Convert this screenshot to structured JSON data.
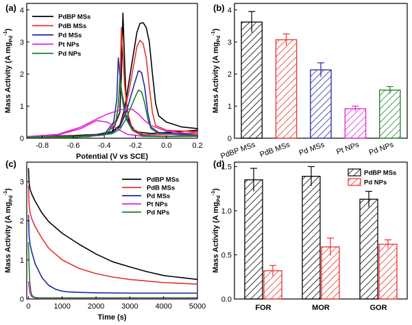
{
  "chart_data": [
    {
      "panel": "(a)",
      "type": "line",
      "xlabel": "Potential (V vs SCE)",
      "ylabel": "Mass Activity (A mg",
      "ylabel_sub": "Pd",
      "ylabel_sup": "-1",
      "ylabel_close": ")",
      "xlim": [
        -0.9,
        0.2
      ],
      "ylim": [
        0,
        4.2
      ],
      "xticks": [
        -0.8,
        -0.6,
        -0.4,
        -0.2,
        0.0,
        0.2
      ],
      "xtick_labels": [
        "-0.8",
        "-0.6",
        "-0.4",
        "-0.2",
        "0.0",
        "0.2"
      ],
      "yticks": [
        0,
        1,
        2,
        3,
        4
      ],
      "ytick_labels": [
        "0",
        "1",
        "2",
        "3",
        "4"
      ],
      "legend_position": "top-left",
      "series": [
        {
          "name": "PdBP MSs",
          "color": "#000000",
          "forward": [
            [
              -0.9,
              0.05
            ],
            [
              -0.6,
              0.08
            ],
            [
              -0.45,
              0.12
            ],
            [
              -0.35,
              0.2
            ],
            [
              -0.3,
              0.4
            ],
            [
              -0.27,
              0.9
            ],
            [
              -0.24,
              1.8
            ],
            [
              -0.21,
              2.7
            ],
            [
              -0.19,
              3.3
            ],
            [
              -0.17,
              3.58
            ],
            [
              -0.15,
              3.6
            ],
            [
              -0.13,
              3.45
            ],
            [
              -0.11,
              3.0
            ],
            [
              -0.09,
              2.0
            ],
            [
              -0.07,
              1.1
            ],
            [
              -0.05,
              0.7
            ],
            [
              0.0,
              0.5
            ],
            [
              0.1,
              0.35
            ],
            [
              0.2,
              0.3
            ]
          ],
          "reverse": [
            [
              0.2,
              0.25
            ],
            [
              0.0,
              0.18
            ],
            [
              -0.1,
              0.15
            ],
            [
              -0.2,
              0.2
            ],
            [
              -0.24,
              0.5
            ],
            [
              -0.26,
              1.2
            ],
            [
              -0.27,
              2.5
            ],
            [
              -0.28,
              3.9
            ],
            [
              -0.29,
              2.0
            ],
            [
              -0.3,
              0.8
            ],
            [
              -0.35,
              0.2
            ],
            [
              -0.5,
              0.05
            ],
            [
              -0.9,
              0.03
            ]
          ]
        },
        {
          "name": "PdB MSs",
          "color": "#e8302a",
          "forward": [
            [
              -0.9,
              0.04
            ],
            [
              -0.6,
              0.06
            ],
            [
              -0.45,
              0.1
            ],
            [
              -0.35,
              0.18
            ],
            [
              -0.3,
              0.35
            ],
            [
              -0.27,
              0.8
            ],
            [
              -0.24,
              1.5
            ],
            [
              -0.21,
              2.3
            ],
            [
              -0.19,
              2.85
            ],
            [
              -0.17,
              3.05
            ],
            [
              -0.15,
              2.95
            ],
            [
              -0.13,
              2.5
            ],
            [
              -0.11,
              1.6
            ],
            [
              -0.09,
              0.8
            ],
            [
              -0.07,
              0.4
            ],
            [
              0.0,
              0.25
            ],
            [
              0.2,
              0.2
            ]
          ],
          "reverse": [
            [
              0.2,
              0.18
            ],
            [
              0.0,
              0.12
            ],
            [
              -0.15,
              0.12
            ],
            [
              -0.22,
              0.3
            ],
            [
              -0.25,
              0.8
            ],
            [
              -0.27,
              1.7
            ],
            [
              -0.29,
              3.45
            ],
            [
              -0.3,
              1.6
            ],
            [
              -0.32,
              0.6
            ],
            [
              -0.38,
              0.15
            ],
            [
              -0.6,
              0.04
            ],
            [
              -0.9,
              0.02
            ]
          ]
        },
        {
          "name": "Pd MSs",
          "color": "#1f26a3",
          "forward": [
            [
              -0.9,
              0.03
            ],
            [
              -0.6,
              0.05
            ],
            [
              -0.45,
              0.1
            ],
            [
              -0.35,
              0.18
            ],
            [
              -0.3,
              0.35
            ],
            [
              -0.26,
              0.8
            ],
            [
              -0.23,
              1.3
            ],
            [
              -0.2,
              1.8
            ],
            [
              -0.18,
              2.1
            ],
            [
              -0.16,
              2.05
            ],
            [
              -0.14,
              1.6
            ],
            [
              -0.12,
              0.8
            ],
            [
              -0.1,
              0.35
            ],
            [
              -0.05,
              0.18
            ],
            [
              0.2,
              0.1
            ]
          ],
          "reverse": [
            [
              0.2,
              0.08
            ],
            [
              0.0,
              0.06
            ],
            [
              -0.15,
              0.08
            ],
            [
              -0.22,
              0.25
            ],
            [
              -0.26,
              0.7
            ],
            [
              -0.29,
              1.5
            ],
            [
              -0.31,
              2.5
            ],
            [
              -0.32,
              1.2
            ],
            [
              -0.34,
              0.5
            ],
            [
              -0.4,
              0.12
            ],
            [
              -0.6,
              0.03
            ],
            [
              -0.9,
              0.02
            ]
          ]
        },
        {
          "name": "Pt NPs",
          "color": "#e020d8",
          "forward": [
            [
              -0.9,
              0.05
            ],
            [
              -0.7,
              0.12
            ],
            [
              -0.55,
              0.35
            ],
            [
              -0.45,
              0.6
            ],
            [
              -0.38,
              0.75
            ],
            [
              -0.32,
              0.85
            ],
            [
              -0.26,
              0.92
            ],
            [
              -0.22,
              0.9
            ],
            [
              -0.18,
              0.75
            ],
            [
              -0.14,
              0.55
            ],
            [
              -0.1,
              0.4
            ],
            [
              0.0,
              0.22
            ],
            [
              0.2,
              0.12
            ]
          ],
          "reverse": [
            [
              0.2,
              0.1
            ],
            [
              0.0,
              0.06
            ],
            [
              -0.15,
              0.06
            ],
            [
              -0.25,
              0.12
            ],
            [
              -0.32,
              0.3
            ],
            [
              -0.38,
              0.5
            ],
            [
              -0.45,
              0.55
            ],
            [
              -0.55,
              0.3
            ],
            [
              -0.7,
              0.1
            ],
            [
              -0.9,
              0.04
            ]
          ]
        },
        {
          "name": "Pd NPs",
          "color": "#1e7d2a",
          "forward": [
            [
              -0.9,
              0.03
            ],
            [
              -0.6,
              0.05
            ],
            [
              -0.45,
              0.08
            ],
            [
              -0.35,
              0.14
            ],
            [
              -0.3,
              0.28
            ],
            [
              -0.26,
              0.6
            ],
            [
              -0.23,
              0.95
            ],
            [
              -0.2,
              1.3
            ],
            [
              -0.18,
              1.5
            ],
            [
              -0.16,
              1.45
            ],
            [
              -0.14,
              1.1
            ],
            [
              -0.12,
              0.6
            ],
            [
              -0.1,
              0.3
            ],
            [
              -0.05,
              0.15
            ],
            [
              0.2,
              0.08
            ]
          ],
          "reverse": [
            [
              0.2,
              0.06
            ],
            [
              0.0,
              0.05
            ],
            [
              -0.15,
              0.06
            ],
            [
              -0.22,
              0.25
            ],
            [
              -0.26,
              0.6
            ],
            [
              -0.28,
              1.1
            ],
            [
              -0.3,
              1.9
            ],
            [
              -0.31,
              1.0
            ],
            [
              -0.33,
              0.4
            ],
            [
              -0.4,
              0.1
            ],
            [
              -0.6,
              0.02
            ],
            [
              -0.9,
              0.02
            ]
          ]
        }
      ]
    },
    {
      "panel": "(b)",
      "type": "bar",
      "ylabel": "Mass Activity (A mg",
      "ylabel_sub": "Pd",
      "ylabel_sup": "-1",
      "ylabel_close": ")",
      "ylim": [
        0,
        4.2
      ],
      "yticks": [
        0,
        1,
        2,
        3,
        4
      ],
      "ytick_labels": [
        "0",
        "1",
        "2",
        "3",
        "4"
      ],
      "categories": [
        "PdBP MSs",
        "PdB MSs",
        "Pd MSs",
        "Pt NPs",
        "Pd NPs"
      ],
      "values": [
        3.62,
        3.07,
        2.13,
        0.92,
        1.5
      ],
      "errors": [
        0.33,
        0.18,
        0.22,
        0.08,
        0.11
      ],
      "colors": [
        "#000000",
        "#e8302a",
        "#1f26a3",
        "#e020d8",
        "#1e7d2a"
      ]
    },
    {
      "panel": "(c)",
      "type": "line",
      "xlabel": "Time (s)",
      "ylabel": "Mass Activity (A mg",
      "ylabel_sub": "Pd",
      "ylabel_sup": "-1",
      "ylabel_close": ")",
      "xlim": [
        -50,
        5000
      ],
      "ylim": [
        0,
        3.5
      ],
      "xticks": [
        0,
        1000,
        2000,
        3000,
        4000,
        5000
      ],
      "xtick_labels": [
        "0",
        "1000",
        "2000",
        "3000",
        "4000",
        "5000"
      ],
      "yticks": [
        0,
        1,
        2,
        3
      ],
      "ytick_labels": [
        "0",
        "1",
        "2",
        "3"
      ],
      "legend_position": "top-right",
      "series": [
        {
          "name": "PdBP MSs",
          "color": "#000000",
          "x": [
            0,
            20,
            50,
            100,
            200,
            400,
            600,
            1000,
            1500,
            2000,
            2500,
            3000,
            3500,
            4000,
            4500,
            5000
          ],
          "y": [
            3.35,
            2.95,
            2.8,
            2.68,
            2.5,
            2.2,
            1.98,
            1.68,
            1.4,
            1.15,
            0.95,
            0.82,
            0.7,
            0.6,
            0.55,
            0.5
          ]
        },
        {
          "name": "PdB MSs",
          "color": "#e8302a",
          "x": [
            0,
            20,
            50,
            100,
            200,
            400,
            600,
            1000,
            1500,
            2000,
            2500,
            3000,
            3500,
            4000,
            4500,
            5000
          ],
          "y": [
            2.9,
            2.4,
            2.2,
            2.05,
            1.85,
            1.55,
            1.3,
            1.0,
            0.78,
            0.65,
            0.56,
            0.5,
            0.46,
            0.42,
            0.4,
            0.38
          ]
        },
        {
          "name": "Pd MSs",
          "color": "#1f26a3",
          "x": [
            0,
            20,
            50,
            100,
            200,
            400,
            600,
            800,
            1000,
            1200,
            1500,
            2000,
            3000,
            4000,
            5000
          ],
          "y": [
            2.15,
            1.6,
            1.4,
            1.2,
            0.9,
            0.55,
            0.35,
            0.25,
            0.2,
            0.18,
            0.17,
            0.16,
            0.15,
            0.15,
            0.15
          ]
        },
        {
          "name": "Pt NPs",
          "color": "#e020d8",
          "x": [
            0,
            20,
            40,
            70,
            100,
            150,
            200,
            300,
            500,
            1000,
            2000,
            3000,
            4000,
            5000
          ],
          "y": [
            0.45,
            0.3,
            0.18,
            0.1,
            0.06,
            0.04,
            0.03,
            0.02,
            0.02,
            0.02,
            0.02,
            0.02,
            0.02,
            0.02
          ]
        },
        {
          "name": "Pd NPs",
          "color": "#1e7d2a",
          "x": [
            0,
            20,
            40,
            70,
            100,
            150,
            200,
            300,
            500,
            1000,
            2000,
            3000,
            4000,
            5000
          ],
          "y": [
            1.45,
            0.8,
            0.45,
            0.2,
            0.1,
            0.06,
            0.04,
            0.03,
            0.03,
            0.03,
            0.03,
            0.03,
            0.03,
            0.03
          ]
        }
      ]
    },
    {
      "panel": "(d)",
      "type": "bar",
      "ylabel": "Mass Activity (A mg",
      "ylabel_sub": "Pd",
      "ylabel_sup": "-1",
      "ylabel_close": ")",
      "ylim": [
        0,
        1.55
      ],
      "yticks": [
        0.0,
        0.5,
        1.0,
        1.5
      ],
      "ytick_labels": [
        "0.0",
        "0.5",
        "1.0",
        "1.5"
      ],
      "categories": [
        "FOR",
        "MOR",
        "GOR"
      ],
      "legend_position": "top-right",
      "series": [
        {
          "name": "PdBP MSs",
          "color": "#000000",
          "values": [
            1.35,
            1.39,
            1.13
          ],
          "errors": [
            0.13,
            0.11,
            0.09
          ]
        },
        {
          "name": "Pd NPs",
          "color": "#e8302a",
          "values": [
            0.32,
            0.59,
            0.62
          ],
          "errors": [
            0.06,
            0.1,
            0.05
          ]
        }
      ]
    }
  ]
}
